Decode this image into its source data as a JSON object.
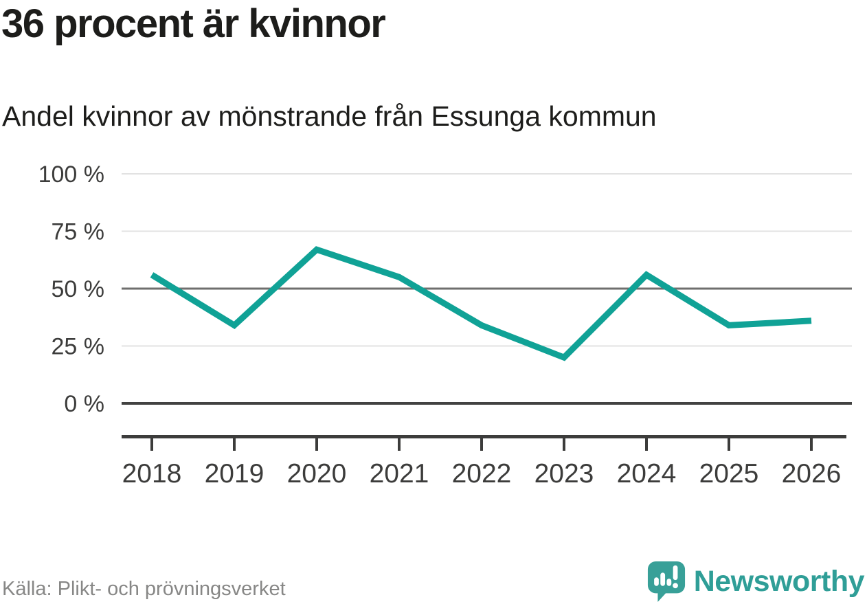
{
  "title": "36 procent är kvinnor",
  "subtitle": "Andel kvinnor av mönstrande från Essunga kommun",
  "source": "Källa: Plikt- och prövningsverket",
  "logo": {
    "text": "Newsworthy",
    "icon": "speech-bubble-bar-chart-icon"
  },
  "colors": {
    "line": "#10a296",
    "logo_teal": "#2f9e97",
    "title_text": "#1d1d1b",
    "axis_text": "#3c3c3b",
    "grid_light": "#e2e2e2",
    "grid_mid": "#6f6f6e",
    "zero_line": "#424241",
    "axis_line": "#3c3c3b",
    "source_text": "#878786"
  },
  "chart_data": {
    "type": "line",
    "title": "36 procent är kvinnor",
    "subtitle": "Andel kvinnor av mönstrande från Essunga kommun",
    "x": [
      2018,
      2019,
      2020,
      2021,
      2022,
      2023,
      2024,
      2025,
      2026
    ],
    "xtick_labels": [
      "2018",
      "2019",
      "2020",
      "2021",
      "2022",
      "2023",
      "2024",
      "2025",
      "2026"
    ],
    "series": [
      {
        "name": "Andel kvinnor av mönstrande",
        "color": "#10a296",
        "values": [
          56,
          34,
          67,
          55,
          34,
          20,
          56,
          34,
          36
        ]
      }
    ],
    "unit": "%",
    "xlabel": "",
    "ylabel": "",
    "ylim": [
      0,
      100
    ],
    "yticks": [
      0,
      25,
      50,
      75,
      100
    ],
    "ytick_labels": [
      "0 %",
      "25 %",
      "50 %",
      "75 %",
      "100 %"
    ],
    "grid": true,
    "legend": false
  }
}
